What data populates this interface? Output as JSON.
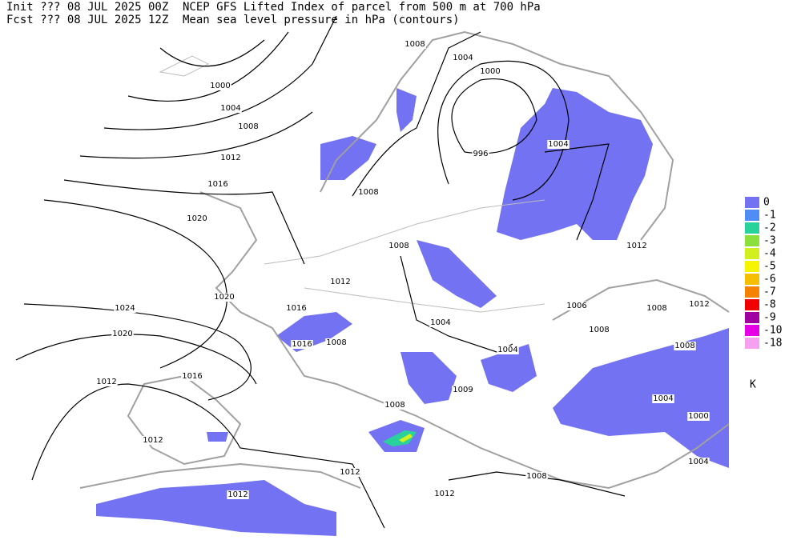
{
  "header": {
    "init": "Init  ??? 08 JUL 2025 00Z",
    "fcst": "Fcst ??? 08 JUL 2025 12Z",
    "title": "NCEP GFS Lifted Index of parcel from 500 m at 700 hPa",
    "subtitle": "Mean sea level pressure in hPa (contours)"
  },
  "contour_labels": [
    "1008",
    "1004",
    "1000",
    "1000",
    "1004",
    "1008",
    "1004",
    "996",
    "1012",
    "1016",
    "1008",
    "1020",
    "1008",
    "1012",
    "1012",
    "1020",
    "1016",
    "1024",
    "1006",
    "1008",
    "1012",
    "1004",
    "1008",
    "1016",
    "1008",
    "1020",
    "1004",
    "1008",
    "1016",
    "1012",
    "1009",
    "1004",
    "1008",
    "1000",
    "1012",
    "1004",
    "1012",
    "1008",
    "1012",
    "1012"
  ],
  "legend": {
    "items": [
      {
        "label": 0,
        "color": "#7272f2"
      },
      {
        "label": -1,
        "color": "#4f8cf5"
      },
      {
        "label": -2,
        "color": "#28d29a"
      },
      {
        "label": -3,
        "color": "#8ce03c"
      },
      {
        "label": -4,
        "color": "#d2f01e"
      },
      {
        "label": -5,
        "color": "#f5f500"
      },
      {
        "label": -6,
        "color": "#f5be00"
      },
      {
        "label": -7,
        "color": "#f58200"
      },
      {
        "label": -8,
        "color": "#f00000"
      },
      {
        "label": -9,
        "color": "#a000a0"
      },
      {
        "label": -10,
        "color": "#e600e6"
      },
      {
        "label": -18,
        "color": "#f5a0f0"
      }
    ],
    "unit": "K"
  }
}
